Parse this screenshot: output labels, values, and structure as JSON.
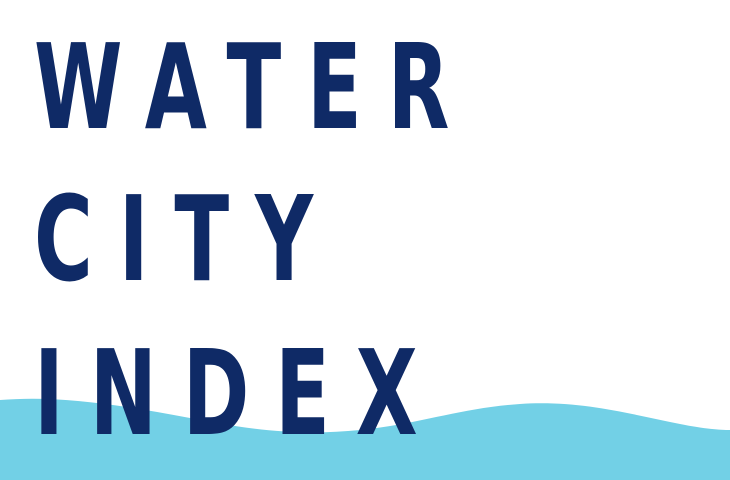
{
  "title_lines": [
    "WATER",
    "CITY",
    "INDEX"
  ],
  "colors": {
    "background": "#ffffff",
    "text": "#0f2a66",
    "wave": "#72d0e6"
  }
}
